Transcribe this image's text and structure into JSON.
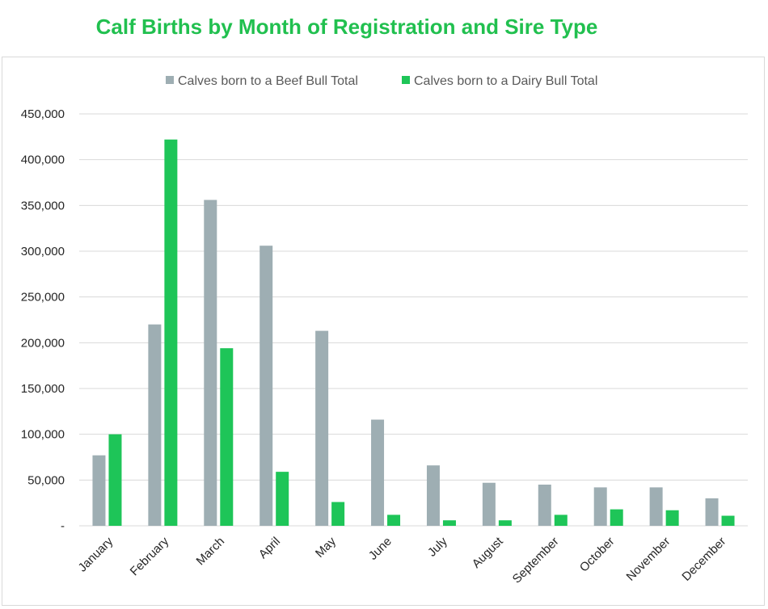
{
  "chart_data": {
    "type": "bar",
    "title": "Calf Births by Month of Registration and Sire Type",
    "xlabel": "",
    "ylabel": "",
    "categories": [
      "January",
      "February",
      "March",
      "April",
      "May",
      "June",
      "July",
      "August",
      "September",
      "October",
      "November",
      "December"
    ],
    "series": [
      {
        "name": "Calves born to a Beef Bull Total",
        "color": "#9eaeb3",
        "values": [
          77000,
          220000,
          356000,
          306000,
          213000,
          116000,
          66000,
          47000,
          45000,
          42000,
          42000,
          30000
        ]
      },
      {
        "name": "Calves born to a Dairy Bull Total",
        "color": "#1ec558",
        "values": [
          100000,
          422000,
          194000,
          59000,
          26000,
          12000,
          6000,
          6000,
          12000,
          18000,
          17000,
          11000
        ]
      }
    ],
    "ylim": [
      0,
      450000
    ],
    "yticks": [
      0,
      50000,
      100000,
      150000,
      200000,
      250000,
      300000,
      350000,
      400000,
      450000
    ],
    "ytick_labels": [
      "-",
      "50,000",
      "100,000",
      "150,000",
      "200,000",
      "250,000",
      "300,000",
      "350,000",
      "400,000",
      "450,000"
    ],
    "grid": true,
    "legend_position": "top",
    "title_color": "#21c04f"
  }
}
